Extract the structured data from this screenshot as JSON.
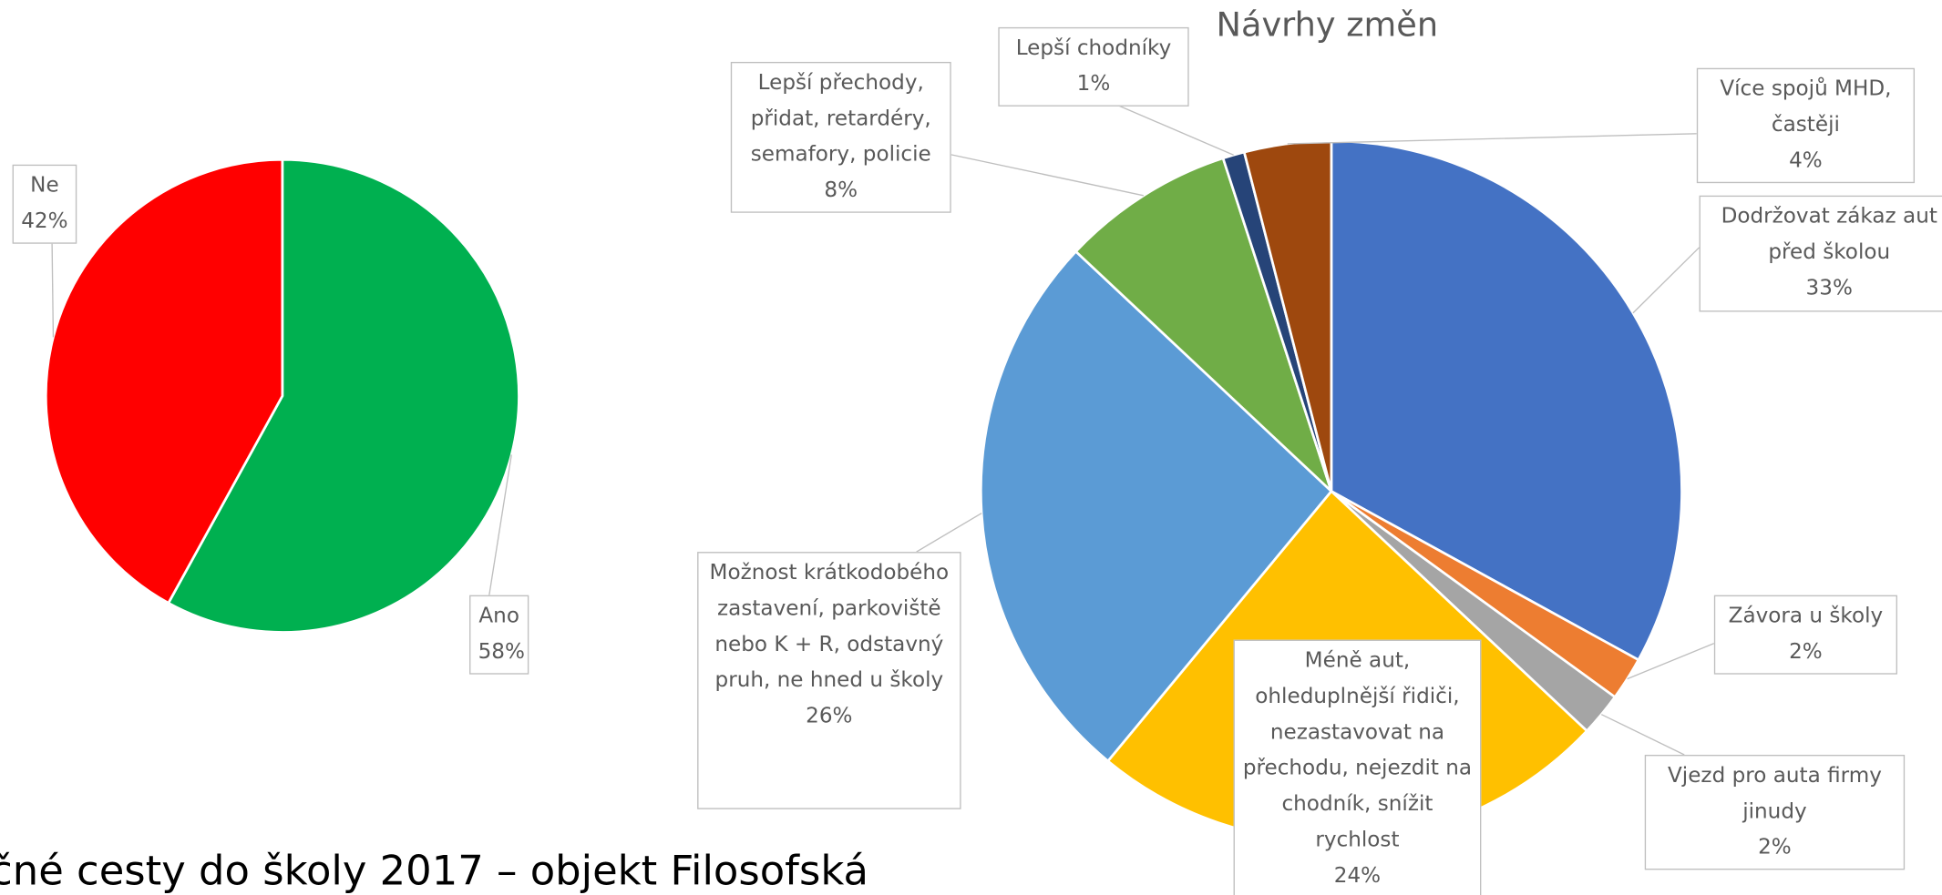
{
  "slide_title": "čné cesty do školy 2017 – objekt Filosofská",
  "chart_data": [
    {
      "type": "pie",
      "categories": [
        "Ano",
        "Ne"
      ],
      "values": [
        58,
        42
      ],
      "value_labels": [
        "58%",
        "42%"
      ],
      "colors": [
        "#00b050",
        "#ff0000"
      ]
    },
    {
      "type": "pie",
      "title": "Návrhy změn",
      "categories": [
        "Dodržovat zákaz aut před školou",
        "Závora u školy",
        "Vjezd pro auta firmy jinudy",
        "Méně aut, ohleduplnější řidiči, nezastavovat na přechodu, nejezdit na chodník, snížit rychlost",
        "Možnost krátkodobého zastavení, parkoviště nebo K + R, odstavný pruh, ne hned u školy",
        "Lepší přechody, přidat, retardéry, semafory, policie",
        "Lepší chodníky",
        "Více spojů MHD, častěji"
      ],
      "values": [
        33,
        2,
        2,
        24,
        26,
        8,
        1,
        4
      ],
      "value_labels": [
        "33%",
        "2%",
        "2%",
        "24%",
        "26%",
        "8%",
        "1%",
        "4%"
      ],
      "colors": [
        "#4472c4",
        "#ed7d31",
        "#a5a5a5",
        "#ffc000",
        "#5b9bd5",
        "#70ad47",
        "#264478",
        "#9e480e"
      ]
    }
  ]
}
